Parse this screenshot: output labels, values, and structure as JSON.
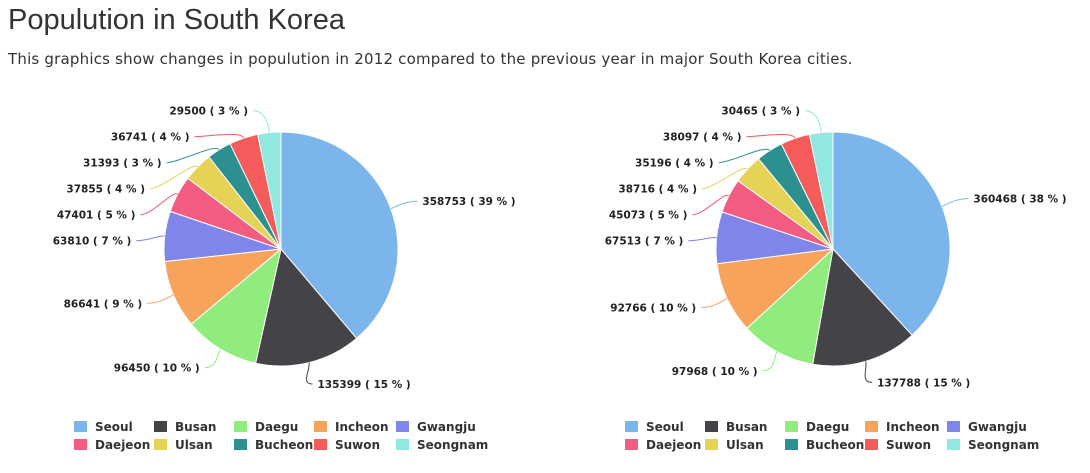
{
  "title": "Populution in South Korea",
  "subtitle": "This graphics show changes in populution in 2012 compared to the previous year in major South Korea cities.",
  "chart_data": [
    {
      "type": "pie",
      "title": "",
      "legend_position": "bottom",
      "categories": [
        "Seoul",
        "Busan",
        "Daegu",
        "Incheon",
        "Gwangju",
        "Daejeon",
        "Ulsan",
        "Bucheon",
        "Suwon",
        "Seongnam"
      ],
      "values": [
        358753,
        135399,
        96450,
        86641,
        63810,
        47401,
        37855,
        31393,
        36741,
        29500
      ],
      "labels": [
        "358753 ( 39 % )",
        "135399 ( 15 % )",
        "96450 ( 10 % )",
        "86641 ( 9 % )",
        "63810 ( 7 % )",
        "47401 ( 5 % )",
        "37855 ( 4 % )",
        "31393 ( 3 % )",
        "36741 ( 4 % )",
        "29500 ( 3 % )"
      ],
      "colors": [
        "#7cb5ec",
        "#434348",
        "#90ed7d",
        "#f7a35c",
        "#8085e9",
        "#f15c80",
        "#e4d354",
        "#2b908f",
        "#f45b5b",
        "#91e8e1"
      ]
    },
    {
      "type": "pie",
      "title": "",
      "legend_position": "bottom",
      "categories": [
        "Seoul",
        "Busan",
        "Daegu",
        "Incheon",
        "Gwangju",
        "Daejeon",
        "Ulsan",
        "Bucheon",
        "Suwon",
        "Seongnam"
      ],
      "values": [
        360468,
        137788,
        97968,
        92766,
        67513,
        45073,
        38716,
        35196,
        38097,
        30465
      ],
      "labels": [
        "360468 ( 38 % )",
        "137788 ( 15 % )",
        "97968 ( 10 % )",
        "92766 ( 10 % )",
        "67513 ( 7 % )",
        "45073 ( 5 % )",
        "38716 ( 4 % )",
        "35196 ( 4 % )",
        "38097 ( 4 % )",
        "30465 ( 3 % )"
      ],
      "colors": [
        "#7cb5ec",
        "#434348",
        "#90ed7d",
        "#f7a35c",
        "#8085e9",
        "#f15c80",
        "#e4d354",
        "#2b908f",
        "#f45b5b",
        "#91e8e1"
      ]
    }
  ]
}
